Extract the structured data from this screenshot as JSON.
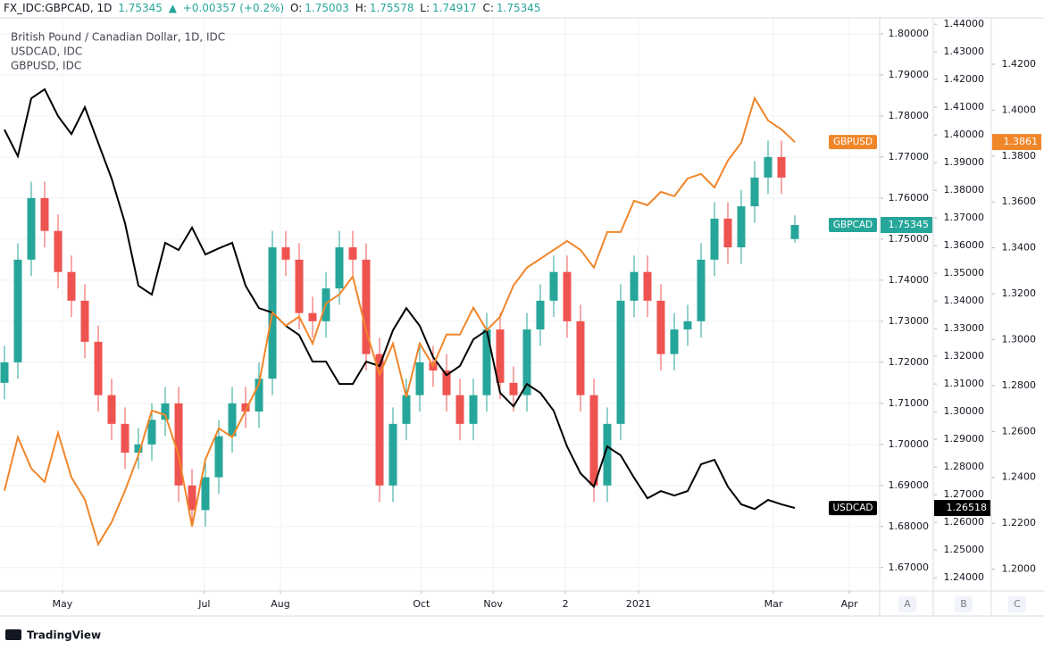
{
  "header": {
    "symbol": "FX_IDC:GBPCAD, 1D",
    "arrow": "▲",
    "change": "+0.00357 (+0.2%)",
    "ohlc_labels": [
      "O:",
      "H:",
      "L:",
      "C:"
    ]
  },
  "axis_buttons": [
    "A",
    "B",
    "C"
  ],
  "brand": "TradingView",
  "chart_data": {
    "type": "candlestick",
    "legend": [
      "British Pound / Canadian Dollar, 1D, IDC",
      "USDCAD, IDC",
      "GBPUSD, IDC"
    ],
    "x": [
      0,
      4,
      8,
      12,
      16,
      20,
      24,
      28,
      32,
      36,
      40,
      44,
      48,
      52,
      56,
      60,
      64,
      68,
      72,
      76,
      80,
      84,
      88,
      92,
      96,
      100,
      104,
      108,
      112,
      116,
      120,
      124,
      128,
      132,
      136,
      140,
      144,
      148,
      152,
      156,
      160,
      164,
      168,
      172,
      176,
      180,
      184,
      188,
      192,
      196,
      200,
      204,
      208,
      212,
      216,
      220,
      224,
      228,
      232,
      236
    ],
    "xlim": [
      -1.333,
      261.333
    ],
    "xticks": [
      {
        "value": 17.3,
        "label": "May"
      },
      {
        "value": 59.7,
        "label": "Jul"
      },
      {
        "value": 82.4,
        "label": "Aug"
      },
      {
        "value": 124.5,
        "label": "Oct"
      },
      {
        "value": 145.9,
        "label": "Nov"
      },
      {
        "value": 167.5,
        "label": "2"
      },
      {
        "value": 189.3,
        "label": "2021"
      },
      {
        "value": 229.6,
        "label": "Mar"
      },
      {
        "value": 252.3,
        "label": "Apr"
      }
    ],
    "ylim": [
      1.6643,
      1.8039
    ],
    "yticks": [
      {
        "value": 1.67,
        "label": "1.67000"
      },
      {
        "value": 1.68,
        "label": "1.68000"
      },
      {
        "value": 1.69,
        "label": "1.69000"
      },
      {
        "value": 1.7,
        "label": "1.70000"
      },
      {
        "value": 1.71,
        "label": "1.71000"
      },
      {
        "value": 1.72,
        "label": "1.72000"
      },
      {
        "value": 1.73,
        "label": "1.73000"
      },
      {
        "value": 1.74,
        "label": "1.74000"
      },
      {
        "value": 1.75,
        "label": "1.75000"
      },
      {
        "value": 1.76,
        "label": "1.76000"
      },
      {
        "value": 1.77,
        "label": "1.77000"
      },
      {
        "value": 1.78,
        "label": "1.78000"
      },
      {
        "value": 1.79,
        "label": "1.79000"
      },
      {
        "value": 1.8,
        "label": "1.80000"
      }
    ],
    "y2lim": [
      1.2352,
      1.4423
    ],
    "y2ticks": [
      {
        "value": 1.24,
        "label": "1.24000"
      },
      {
        "value": 1.25,
        "label": "1.25000"
      },
      {
        "value": 1.26,
        "label": "1.26000"
      },
      {
        "value": 1.27,
        "label": "1.27000"
      },
      {
        "value": 1.28,
        "label": "1.28000"
      },
      {
        "value": 1.29,
        "label": "1.29000"
      },
      {
        "value": 1.3,
        "label": "1.30000"
      },
      {
        "value": 1.31,
        "label": "1.31000"
      },
      {
        "value": 1.32,
        "label": "1.32000"
      },
      {
        "value": 1.33,
        "label": "1.33000"
      },
      {
        "value": 1.34,
        "label": "1.34000"
      },
      {
        "value": 1.35,
        "label": "1.35000"
      },
      {
        "value": 1.36,
        "label": "1.36000"
      },
      {
        "value": 1.37,
        "label": "1.37000"
      },
      {
        "value": 1.38,
        "label": "1.38000"
      },
      {
        "value": 1.39,
        "label": "1.39000"
      },
      {
        "value": 1.4,
        "label": "1.40000"
      },
      {
        "value": 1.41,
        "label": "1.41000"
      },
      {
        "value": 1.42,
        "label": "1.42000"
      },
      {
        "value": 1.43,
        "label": "1.43000"
      },
      {
        "value": 1.44,
        "label": "1.44000"
      }
    ],
    "y3lim": [
      1.1905,
      1.4402
    ],
    "y3ticks": [
      {
        "value": 1.2,
        "label": "1.2000"
      },
      {
        "value": 1.22,
        "label": "1.2200"
      },
      {
        "value": 1.24,
        "label": "1.2400"
      },
      {
        "value": 1.26,
        "label": "1.2600"
      },
      {
        "value": 1.28,
        "label": "1.2800"
      },
      {
        "value": 1.3,
        "label": "1.3000"
      },
      {
        "value": 1.32,
        "label": "1.3200"
      },
      {
        "value": 1.34,
        "label": "1.3400"
      },
      {
        "value": 1.36,
        "label": "1.3600"
      },
      {
        "value": 1.38,
        "label": "1.3800"
      },
      {
        "value": 1.4,
        "label": "1.4000"
      },
      {
        "value": 1.42,
        "label": "1.4200"
      }
    ],
    "grid": true,
    "series": [
      {
        "name": "GBPCAD",
        "axis": "y",
        "up_color": "#26a69a",
        "down_color": "#ef5350",
        "tag_color": "#26a69a",
        "open": [
          1.715,
          1.72,
          1.745,
          1.76,
          1.752,
          1.742,
          1.735,
          1.725,
          1.712,
          1.705,
          1.698,
          1.7,
          1.706,
          1.71,
          1.69,
          1.684,
          1.692,
          1.702,
          1.71,
          1.708,
          1.716,
          1.748,
          1.745,
          1.732,
          1.73,
          1.738,
          1.748,
          1.745,
          1.722,
          1.69,
          1.705,
          1.712,
          1.72,
          1.718,
          1.712,
          1.705,
          1.712,
          1.728,
          1.715,
          1.712,
          1.728,
          1.735,
          1.742,
          1.73,
          1.712,
          1.69,
          1.705,
          1.735,
          1.742,
          1.735,
          1.722,
          1.728,
          1.73,
          1.745,
          1.755,
          1.748,
          1.758,
          1.765,
          1.77,
          1.75003
        ],
        "high": [
          1.724,
          1.749,
          1.764,
          1.764,
          1.756,
          1.746,
          1.739,
          1.729,
          1.716,
          1.709,
          1.704,
          1.71,
          1.714,
          1.714,
          1.694,
          1.696,
          1.706,
          1.714,
          1.714,
          1.72,
          1.752,
          1.752,
          1.749,
          1.736,
          1.742,
          1.752,
          1.752,
          1.749,
          1.726,
          1.709,
          1.716,
          1.724,
          1.724,
          1.722,
          1.716,
          1.716,
          1.732,
          1.732,
          1.719,
          1.732,
          1.739,
          1.746,
          1.746,
          1.734,
          1.716,
          1.709,
          1.739,
          1.746,
          1.746,
          1.739,
          1.732,
          1.734,
          1.749,
          1.759,
          1.759,
          1.762,
          1.769,
          1.774,
          1.774,
          1.75578
        ],
        "low": [
          1.711,
          1.716,
          1.741,
          1.748,
          1.738,
          1.731,
          1.721,
          1.708,
          1.701,
          1.694,
          1.694,
          1.696,
          1.702,
          1.686,
          1.68,
          1.68,
          1.688,
          1.698,
          1.704,
          1.704,
          1.712,
          1.741,
          1.728,
          1.726,
          1.726,
          1.734,
          1.741,
          1.718,
          1.686,
          1.686,
          1.701,
          1.708,
          1.714,
          1.708,
          1.701,
          1.701,
          1.708,
          1.711,
          1.708,
          1.708,
          1.724,
          1.731,
          1.726,
          1.708,
          1.686,
          1.686,
          1.701,
          1.731,
          1.731,
          1.718,
          1.718,
          1.724,
          1.726,
          1.741,
          1.744,
          1.744,
          1.754,
          1.761,
          1.761,
          1.74917
        ],
        "close": [
          1.72,
          1.745,
          1.76,
          1.752,
          1.742,
          1.735,
          1.725,
          1.712,
          1.705,
          1.698,
          1.7,
          1.706,
          1.71,
          1.69,
          1.684,
          1.692,
          1.702,
          1.71,
          1.708,
          1.716,
          1.748,
          1.745,
          1.732,
          1.73,
          1.738,
          1.748,
          1.745,
          1.722,
          1.69,
          1.705,
          1.712,
          1.72,
          1.718,
          1.712,
          1.705,
          1.712,
          1.728,
          1.715,
          1.712,
          1.728,
          1.735,
          1.742,
          1.73,
          1.712,
          1.69,
          1.705,
          1.735,
          1.742,
          1.735,
          1.722,
          1.728,
          1.73,
          1.745,
          1.755,
          1.748,
          1.758,
          1.765,
          1.77,
          1.765,
          1.75345
        ]
      },
      {
        "name": "USDCAD",
        "axis": "y2",
        "color": "#000000",
        "values": [
          1.4019,
          1.3923,
          1.4132,
          1.4165,
          1.4068,
          1.4003,
          1.41,
          1.3971,
          1.3842,
          1.3681,
          1.3455,
          1.3423,
          1.361,
          1.3584,
          1.3665,
          1.3568,
          1.359,
          1.361,
          1.3455,
          1.3374,
          1.3358,
          1.331,
          1.3277,
          1.3181,
          1.3181,
          1.31,
          1.31,
          1.3181,
          1.3165,
          1.3294,
          1.3374,
          1.331,
          1.3197,
          1.3132,
          1.3165,
          1.3261,
          1.3294,
          1.3068,
          1.3019,
          1.31,
          1.3068,
          1.3003,
          1.2874,
          1.2777,
          1.2729,
          1.2874,
          1.2842,
          1.2761,
          1.2687,
          1.2713,
          1.2697,
          1.2713,
          1.281,
          1.2826,
          1.2729,
          1.2665,
          1.2648,
          1.2681,
          1.2665,
          1.26518
        ]
      },
      {
        "name": "GBPUSD",
        "axis": "y3",
        "color": "#f0862a",
        "values": [
          1.2342,
          1.2575,
          1.2439,
          1.238,
          1.2594,
          1.24,
          1.2303,
          1.2108,
          1.2205,
          1.2342,
          1.2497,
          1.2691,
          1.2672,
          1.2497,
          1.2186,
          1.2478,
          1.2614,
          1.2575,
          1.2691,
          1.2808,
          1.3119,
          1.3061,
          1.31,
          1.2983,
          1.3158,
          1.3197,
          1.3275,
          1.3041,
          1.2847,
          1.2983,
          1.275,
          1.2983,
          1.2886,
          1.3022,
          1.3022,
          1.3139,
          1.3041,
          1.31,
          1.3236,
          1.3314,
          1.3352,
          1.3391,
          1.343,
          1.3391,
          1.3314,
          1.3469,
          1.3469,
          1.3605,
          1.3586,
          1.3644,
          1.3625,
          1.3702,
          1.3722,
          1.3663,
          1.378,
          1.3858,
          1.4052,
          1.3955,
          1.3916,
          1.3861
        ]
      }
    ]
  }
}
